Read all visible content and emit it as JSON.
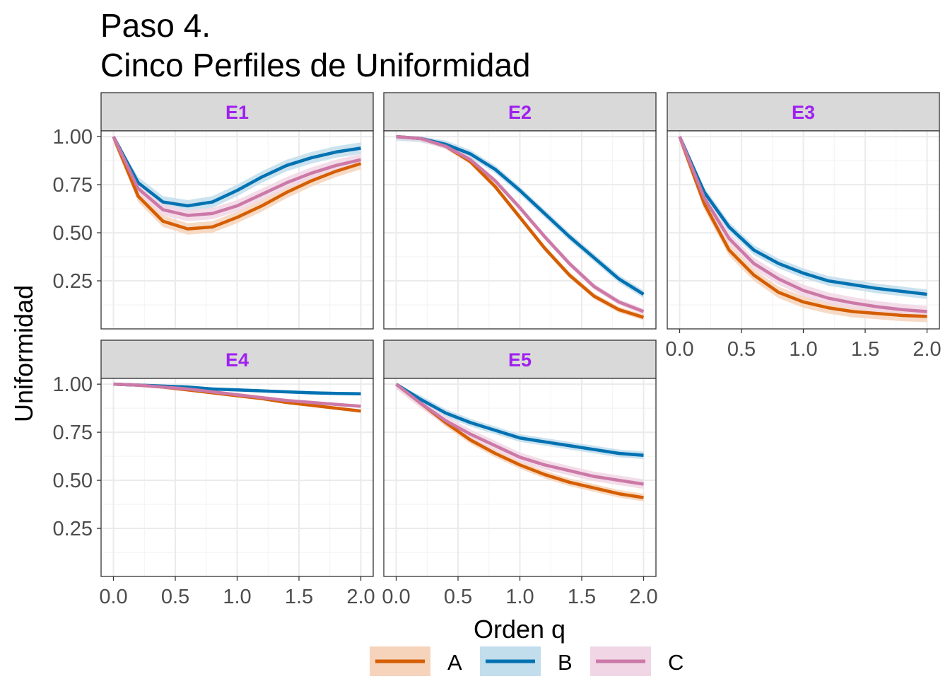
{
  "chart_data": {
    "type": "line",
    "title_lines": [
      "Paso 4.",
      "Cinco Perfiles de Uniformidad"
    ],
    "xlabel": "Orden q",
    "ylabel": "Uniformidad",
    "xlim": [
      -0.1,
      2.1
    ],
    "ylim": [
      0.0,
      1.03
    ],
    "x_ticks": [
      "0.0",
      "0.5",
      "1.0",
      "1.5",
      "2.0"
    ],
    "y_ticks": [
      "0.25",
      "0.50",
      "0.75",
      "1.00"
    ],
    "grid": true,
    "legend_position": "bottom",
    "colors": {
      "A": "#D55E00",
      "B": "#0072B2",
      "C": "#CC79A7"
    },
    "ribbon_colors": {
      "A": "#F6D3BB",
      "B": "#C2DDEC",
      "C": "#F1D7E5"
    },
    "series_names": [
      "A",
      "B",
      "C"
    ],
    "x": [
      0.0,
      0.2,
      0.4,
      0.6,
      0.8,
      1.0,
      1.2,
      1.4,
      1.6,
      1.8,
      2.0
    ],
    "panels": [
      {
        "label": "E1",
        "series": [
          {
            "name": "A",
            "values": [
              1.0,
              0.69,
              0.56,
              0.52,
              0.53,
              0.58,
              0.64,
              0.71,
              0.77,
              0.82,
              0.86
            ],
            "band": 0.03
          },
          {
            "name": "B",
            "values": [
              1.0,
              0.76,
              0.66,
              0.64,
              0.66,
              0.72,
              0.79,
              0.85,
              0.89,
              0.92,
              0.94
            ],
            "band": 0.03
          },
          {
            "name": "C",
            "values": [
              1.0,
              0.73,
              0.62,
              0.59,
              0.6,
              0.64,
              0.7,
              0.76,
              0.81,
              0.85,
              0.88
            ],
            "band": 0.03
          }
        ]
      },
      {
        "label": "E2",
        "series": [
          {
            "name": "A",
            "values": [
              1.0,
              0.99,
              0.95,
              0.87,
              0.74,
              0.58,
              0.42,
              0.28,
              0.17,
              0.1,
              0.06
            ],
            "band": 0.015
          },
          {
            "name": "B",
            "values": [
              1.0,
              0.99,
              0.96,
              0.91,
              0.83,
              0.72,
              0.6,
              0.48,
              0.37,
              0.26,
              0.18
            ],
            "band": 0.02
          },
          {
            "name": "C",
            "values": [
              1.0,
              0.99,
              0.95,
              0.88,
              0.77,
              0.63,
              0.48,
              0.34,
              0.22,
              0.14,
              0.09
            ],
            "band": 0.015
          }
        ]
      },
      {
        "label": "E3",
        "series": [
          {
            "name": "A",
            "values": [
              1.0,
              0.65,
              0.41,
              0.28,
              0.19,
              0.14,
              0.11,
              0.09,
              0.08,
              0.07,
              0.065
            ],
            "band": 0.03
          },
          {
            "name": "B",
            "values": [
              1.0,
              0.71,
              0.53,
              0.41,
              0.34,
              0.29,
              0.25,
              0.23,
              0.21,
              0.195,
              0.18
            ],
            "band": 0.025
          },
          {
            "name": "C",
            "values": [
              1.0,
              0.68,
              0.47,
              0.34,
              0.26,
              0.2,
              0.16,
              0.135,
              0.115,
              0.1,
              0.09
            ],
            "band": 0.03
          }
        ]
      },
      {
        "label": "E4",
        "series": [
          {
            "name": "A",
            "values": [
              1.0,
              0.995,
              0.985,
              0.97,
              0.955,
              0.94,
              0.925,
              0.905,
              0.89,
              0.875,
              0.86
            ],
            "band": 0.008
          },
          {
            "name": "B",
            "values": [
              1.0,
              0.995,
              0.99,
              0.985,
              0.975,
              0.97,
              0.965,
              0.96,
              0.955,
              0.952,
              0.95
            ],
            "band": 0.008
          },
          {
            "name": "C",
            "values": [
              1.0,
              0.995,
              0.985,
              0.975,
              0.96,
              0.945,
              0.93,
              0.915,
              0.905,
              0.895,
              0.885
            ],
            "band": 0.008
          }
        ]
      },
      {
        "label": "E5",
        "series": [
          {
            "name": "A",
            "values": [
              1.0,
              0.9,
              0.8,
              0.71,
              0.64,
              0.58,
              0.53,
              0.49,
              0.46,
              0.43,
              0.41
            ],
            "band": 0.02
          },
          {
            "name": "B",
            "values": [
              1.0,
              0.92,
              0.85,
              0.8,
              0.76,
              0.72,
              0.7,
              0.68,
              0.66,
              0.64,
              0.63
            ],
            "band": 0.02
          },
          {
            "name": "C",
            "values": [
              1.0,
              0.9,
              0.81,
              0.74,
              0.68,
              0.62,
              0.58,
              0.55,
              0.52,
              0.5,
              0.48
            ],
            "band": 0.025
          }
        ]
      }
    ]
  }
}
